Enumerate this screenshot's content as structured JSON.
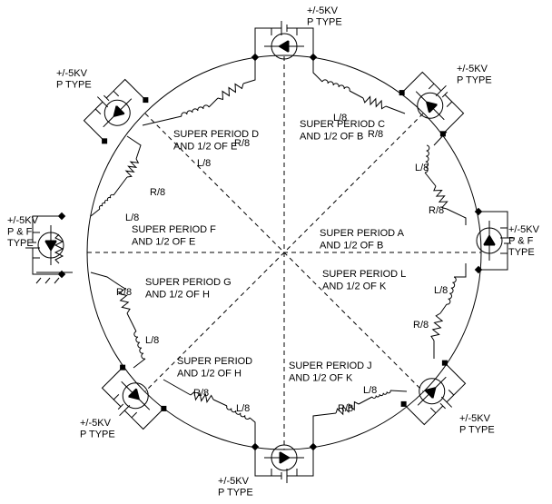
{
  "supplies": [
    {
      "lines": [
        "+/-5KV",
        "P TYPE"
      ]
    },
    {
      "lines": [
        "+/-5KV",
        "P TYPE"
      ]
    },
    {
      "lines": [
        "+/-5KV",
        "P & F",
        "TYPE"
      ]
    },
    {
      "lines": [
        "+/-5KV",
        "P TYPE"
      ]
    },
    {
      "lines": [
        "+/-5KV",
        "P TYPE"
      ]
    },
    {
      "lines": [
        "+/-5KV",
        "P TYPE"
      ]
    },
    {
      "lines": [
        "+/-5KV",
        "P & F",
        "TYPE"
      ]
    },
    {
      "lines": [
        "+/-5KV",
        "P TYPE"
      ]
    }
  ],
  "sectors": [
    {
      "lines": [
        "SUPER PERIOD D",
        "AND 1/2 OF E"
      ]
    },
    {
      "lines": [
        "SUPER PERIOD C",
        "AND 1/2 OF B"
      ]
    },
    {
      "lines": [
        "SUPER PERIOD F",
        "AND 1/2 OF E"
      ]
    },
    {
      "lines": [
        "SUPER PERIOD A",
        "AND 1/2 OF B"
      ]
    },
    {
      "lines": [
        "SUPER PERIOD G",
        "AND 1/2 OF H"
      ]
    },
    {
      "lines": [
        "SUPER PERIOD L",
        "AND 1/2 OF K"
      ]
    },
    {
      "lines": [
        "SUPER PERIOD",
        "AND 1/2 OF H"
      ]
    },
    {
      "lines": [
        "SUPER PERIOD J",
        "AND 1/2 OF K"
      ]
    }
  ],
  "components": [
    "R/8",
    "L/8",
    "L/8",
    "R/8",
    "L/8",
    "R/8",
    "R/8",
    "L/8",
    "R/8",
    "L/8",
    "L/8",
    "R/8",
    "R/8",
    "L/8",
    "R/8",
    "L/8"
  ]
}
